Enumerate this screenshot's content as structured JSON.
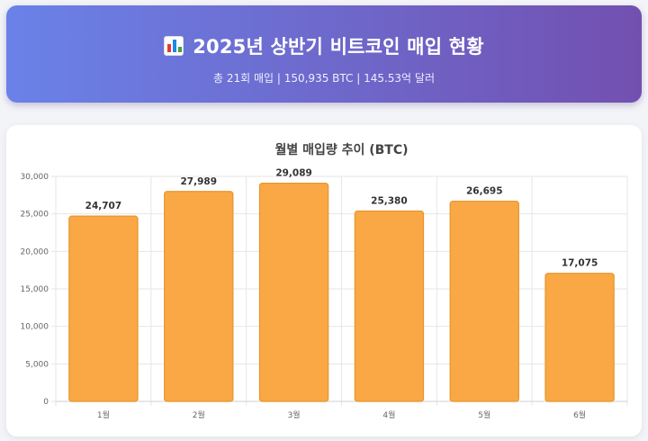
{
  "header": {
    "title": "2025년 상반기 비트코인 매입 현황",
    "subtitle": "총 21회 매입 | 150,935 BTC | 145.53억 달러",
    "icon": "bar-chart-icon"
  },
  "chart_data": {
    "type": "bar",
    "title": "월별 매입량 추이 (BTC)",
    "categories": [
      "1월",
      "2월",
      "3월",
      "4월",
      "5월",
      "6월"
    ],
    "values": [
      24707,
      27989,
      29089,
      25380,
      26695,
      17075
    ],
    "value_labels": [
      "24,707",
      "27,989",
      "29,089",
      "25,380",
      "26,695",
      "17,075"
    ],
    "ylim": [
      0,
      30000
    ],
    "yticks": [
      0,
      5000,
      10000,
      15000,
      20000,
      25000,
      30000
    ],
    "ytick_labels": [
      "0",
      "5,000",
      "10,000",
      "15,000",
      "20,000",
      "25,000",
      "30,000"
    ],
    "grid": true,
    "legend": "none",
    "bar_color": "#f9a845",
    "bar_border": "#e8952c"
  }
}
